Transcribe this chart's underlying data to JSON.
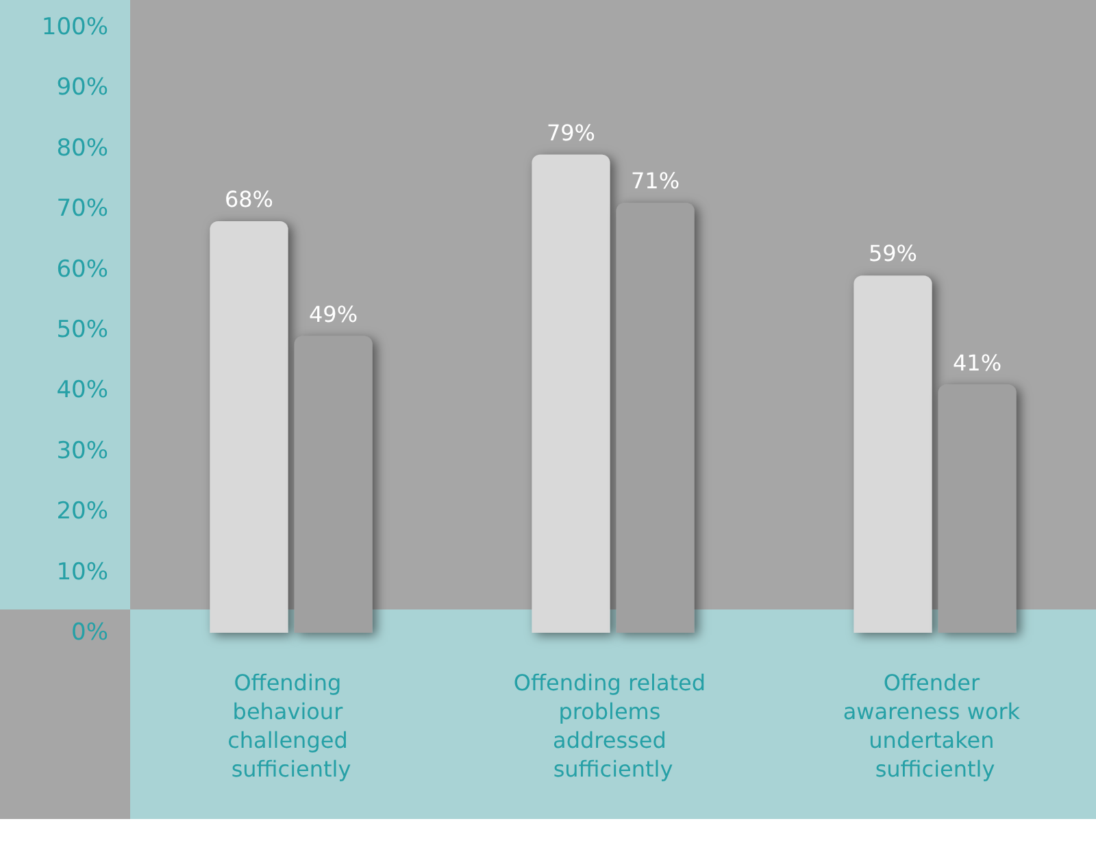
{
  "chart_data": {
    "type": "bar",
    "categories": [
      "Offending behaviour challenged sufficiently",
      "Offending related problems addressed sufficiently",
      "Offender awareness work undertaken sufficiently"
    ],
    "series": [
      {
        "color": "#d9d9d9",
        "values": [
          68,
          79,
          59
        ],
        "value_labels": [
          "68%",
          "79%",
          "59%"
        ]
      },
      {
        "color": "#a0a0a0",
        "values": [
          49,
          71,
          41
        ],
        "value_labels": [
          "49%",
          "71%",
          "41%"
        ]
      }
    ],
    "ylim": [
      0,
      100
    ],
    "yticks": [
      {
        "value": 0,
        "label": "0%"
      },
      {
        "value": 10,
        "label": "10%"
      },
      {
        "value": 20,
        "label": "20%"
      },
      {
        "value": 30,
        "label": "30%"
      },
      {
        "value": 40,
        "label": "40%"
      },
      {
        "value": 50,
        "label": "50%"
      },
      {
        "value": 60,
        "label": "60%"
      },
      {
        "value": 70,
        "label": "70%"
      },
      {
        "value": 80,
        "label": "80%"
      },
      {
        "value": 90,
        "label": "90%"
      },
      {
        "value": 100,
        "label": "100%"
      }
    ],
    "grid": false
  }
}
